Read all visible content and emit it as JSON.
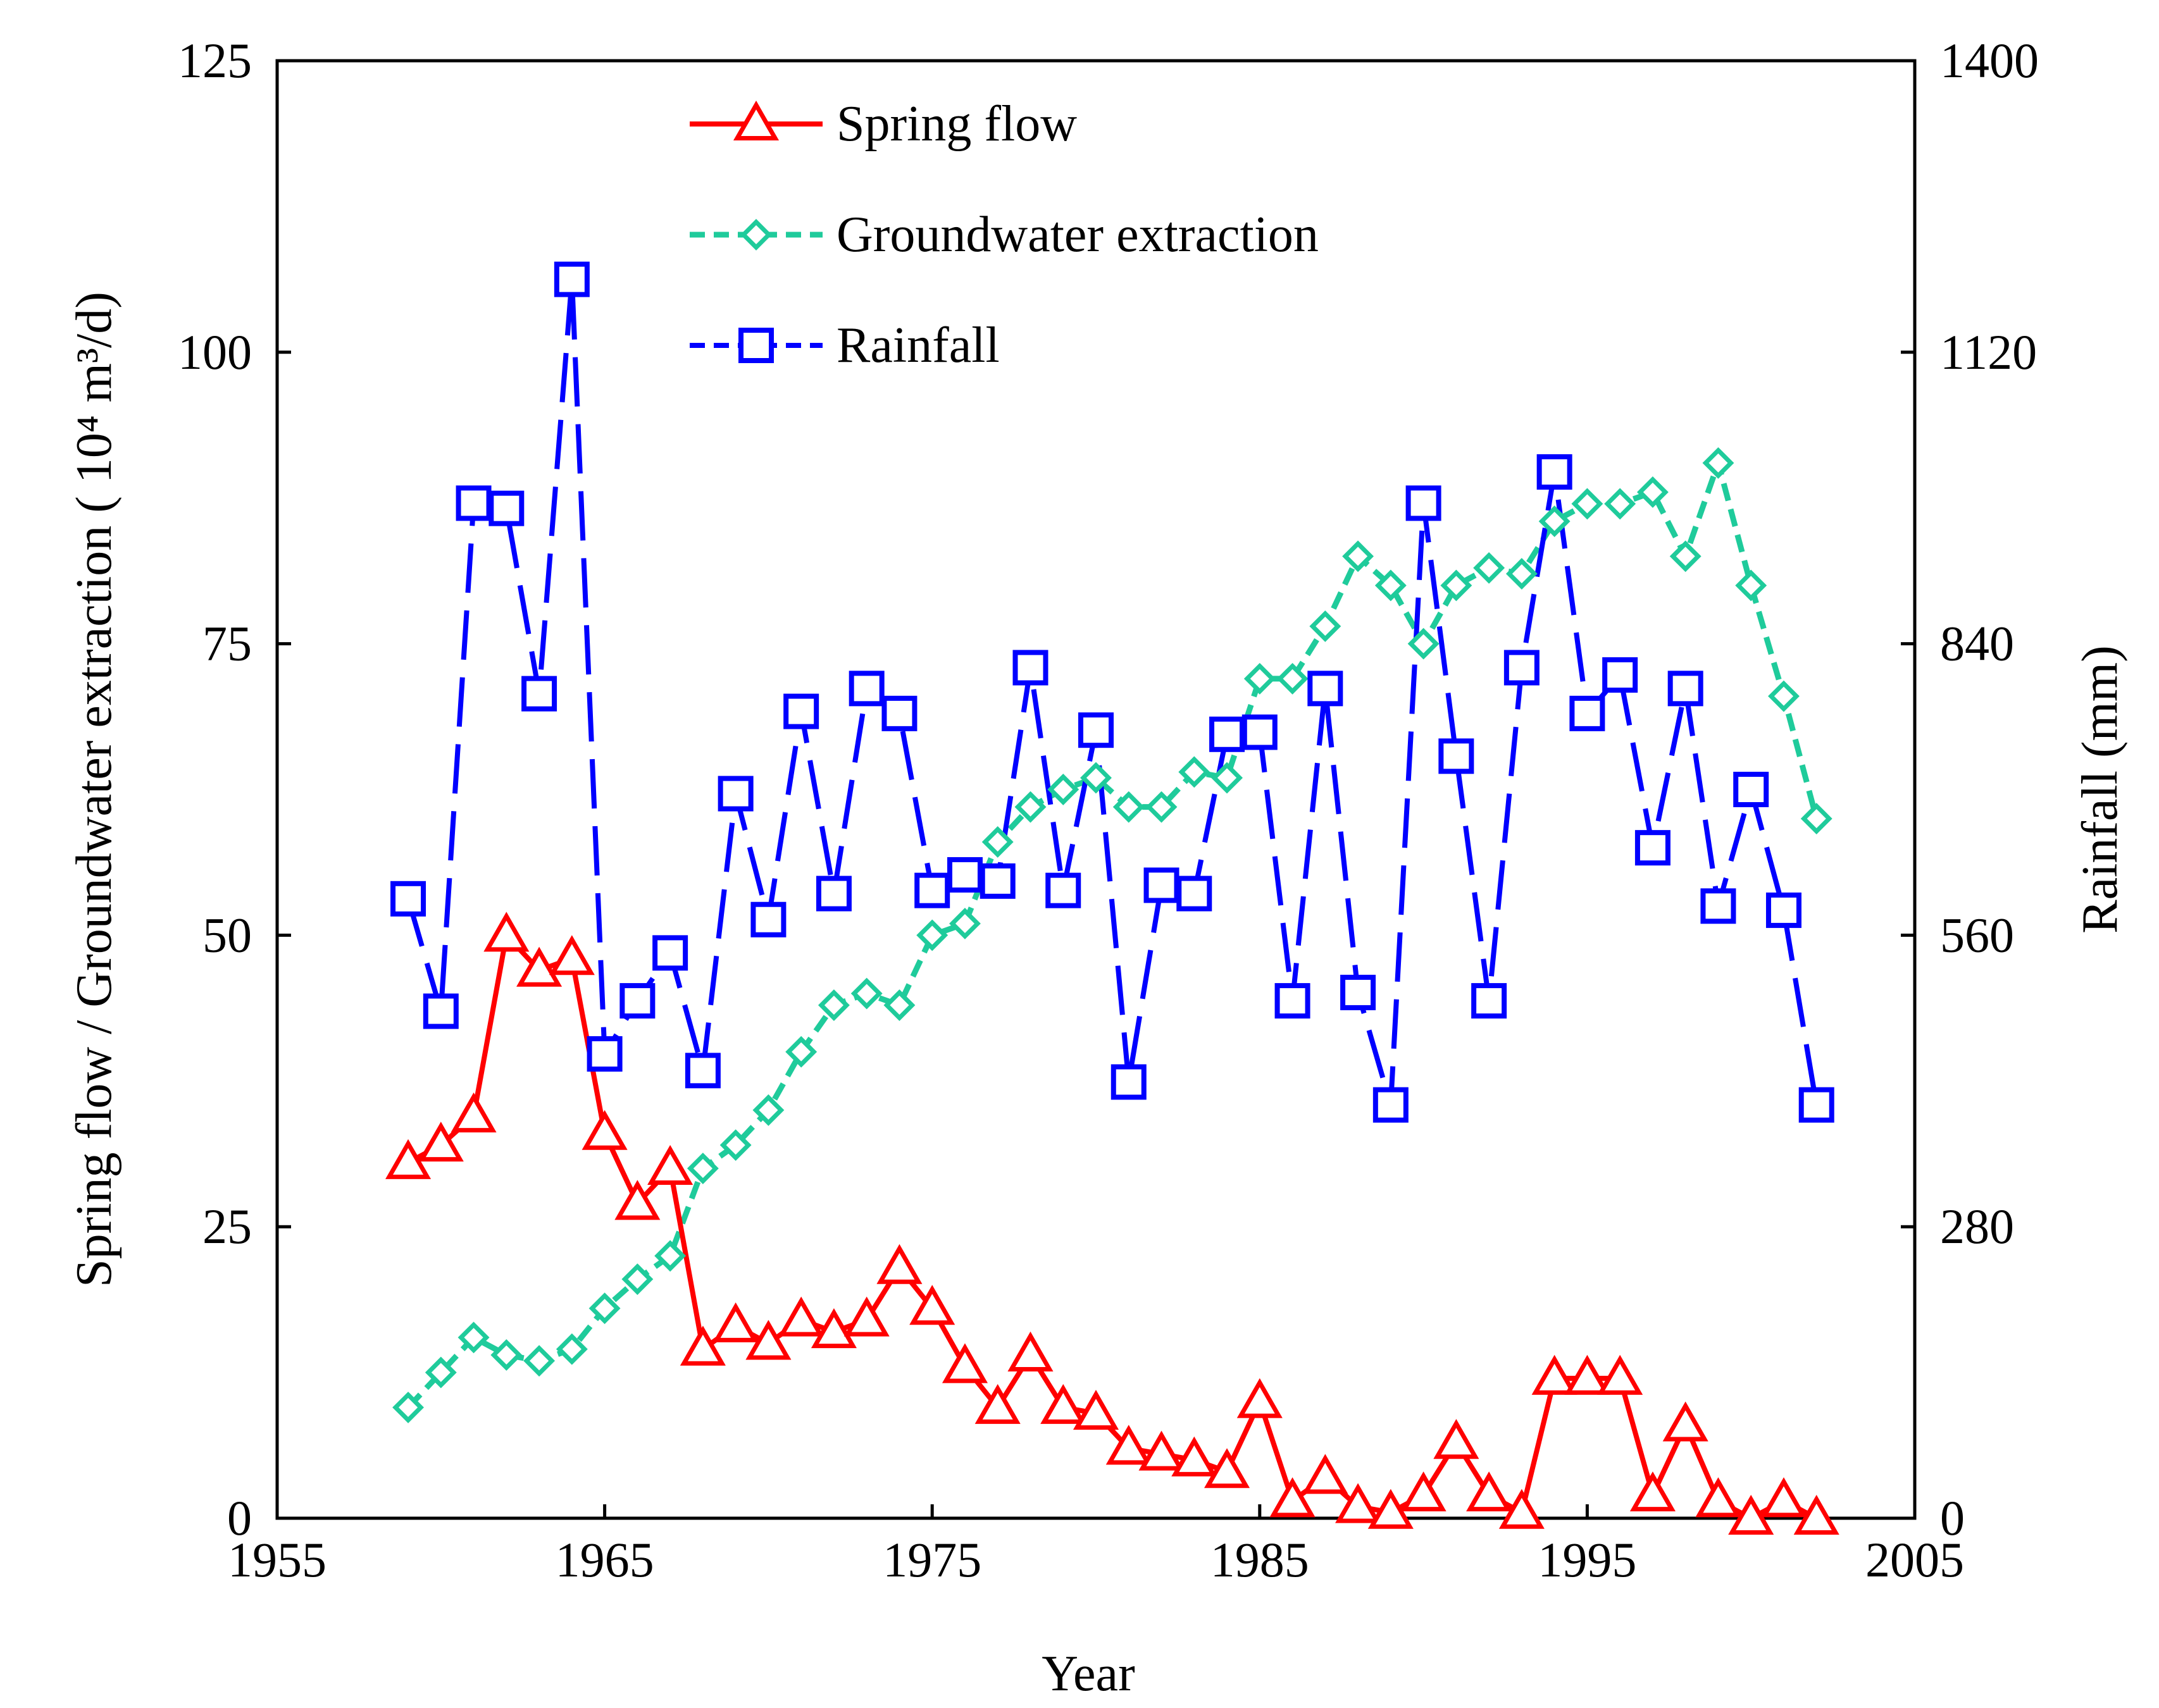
{
  "chart_data": {
    "type": "line",
    "xlabel": "Year",
    "ylabel_left": "Spring flow / Groundwater extraction ( 10⁴ m³/d)",
    "ylabel_right": "Rainfall (mm)",
    "xlim": [
      1955,
      2005
    ],
    "ylim_left": [
      0,
      125
    ],
    "ylim_right": [
      0,
      1400
    ],
    "x_ticks": [
      "1955",
      "1965",
      "1975",
      "1985",
      "1995",
      "2005"
    ],
    "y_ticks_left": [
      "0",
      "25",
      "50",
      "75",
      "100",
      "125"
    ],
    "y_ticks_right": [
      "0",
      "280",
      "560",
      "840",
      "1120",
      "1400"
    ],
    "legend_position": "top-center",
    "series": [
      {
        "name": "Spring flow",
        "axis": "left",
        "color": "#ff0000",
        "marker": "triangle",
        "line": "solid",
        "x": [
          1959,
          1960,
          1961,
          1962,
          1963,
          1964,
          1965,
          1966,
          1967,
          1968,
          1969,
          1970,
          1971,
          1972,
          1973,
          1974,
          1975,
          1976,
          1977,
          1978,
          1979,
          1980,
          1981,
          1982,
          1983,
          1984,
          1985,
          1986,
          1987,
          1988,
          1989,
          1990,
          1991,
          1992,
          1993,
          1994,
          1995,
          1996,
          1997,
          1998,
          1999,
          2000,
          2001,
          2002
        ],
        "values": [
          30.5,
          32,
          34.5,
          50,
          47,
          48,
          33,
          27,
          30,
          14.5,
          16.5,
          15,
          17,
          16,
          17,
          21.5,
          18,
          13,
          9.5,
          14,
          9.5,
          9,
          6,
          5.5,
          5,
          4,
          10,
          1.5,
          3.5,
          1,
          0.5,
          2,
          6.5,
          2,
          0.5,
          12,
          12,
          12,
          2,
          8,
          1.5,
          0,
          1.5,
          0
        ]
      },
      {
        "name": "Groundwater extraction",
        "axis": "left",
        "color": "#1fcb9b",
        "marker": "diamond",
        "line": "dashed",
        "x": [
          1959,
          1960,
          1961,
          1962,
          1963,
          1964,
          1965,
          1966,
          1967,
          1968,
          1969,
          1970,
          1971,
          1972,
          1973,
          1974,
          1975,
          1976,
          1977,
          1978,
          1979,
          1980,
          1981,
          1982,
          1983,
          1984,
          1985,
          1986,
          1987,
          1988,
          1989,
          1990,
          1991,
          1992,
          1993,
          1994,
          1995,
          1996,
          1997,
          1998,
          1999,
          2000,
          2001,
          2002
        ],
        "values": [
          9.5,
          12.5,
          15.5,
          14,
          13.5,
          14.5,
          18,
          20.5,
          22.5,
          30,
          32,
          35,
          40,
          44,
          45,
          44,
          50,
          51,
          58,
          61,
          62.5,
          63.5,
          61,
          61,
          64,
          63.5,
          72,
          72,
          76.5,
          82.5,
          80,
          75,
          80,
          81.5,
          81,
          85.5,
          87,
          87,
          88,
          82.5,
          90.5,
          80,
          70.5,
          60
        ]
      },
      {
        "name": "Rainfall",
        "axis": "right",
        "color": "#0000ff",
        "marker": "square",
        "line": "dashed-long",
        "x": [
          1959,
          1960,
          1961,
          1962,
          1963,
          1964,
          1965,
          1966,
          1967,
          1968,
          1969,
          1970,
          1971,
          1972,
          1973,
          1974,
          1975,
          1976,
          1977,
          1978,
          1979,
          1980,
          1981,
          1982,
          1983,
          1984,
          1985,
          1986,
          1987,
          1988,
          1989,
          1990,
          1991,
          1992,
          1993,
          1994,
          1995,
          1996,
          1997,
          1998,
          1999,
          2000,
          2001,
          2002
        ],
        "values": [
          595,
          487,
          975,
          970,
          792,
          1190,
          446,
          497,
          543,
          430,
          696,
          575,
          775,
          600,
          797,
          773,
          603,
          618,
          612,
          817,
          603,
          757,
          419,
          608,
          600,
          753,
          755,
          497,
          797,
          505,
          397,
          975,
          732,
          497,
          817,
          1005,
          773,
          810,
          644,
          797,
          588,
          700,
          584,
          397
        ]
      }
    ]
  }
}
